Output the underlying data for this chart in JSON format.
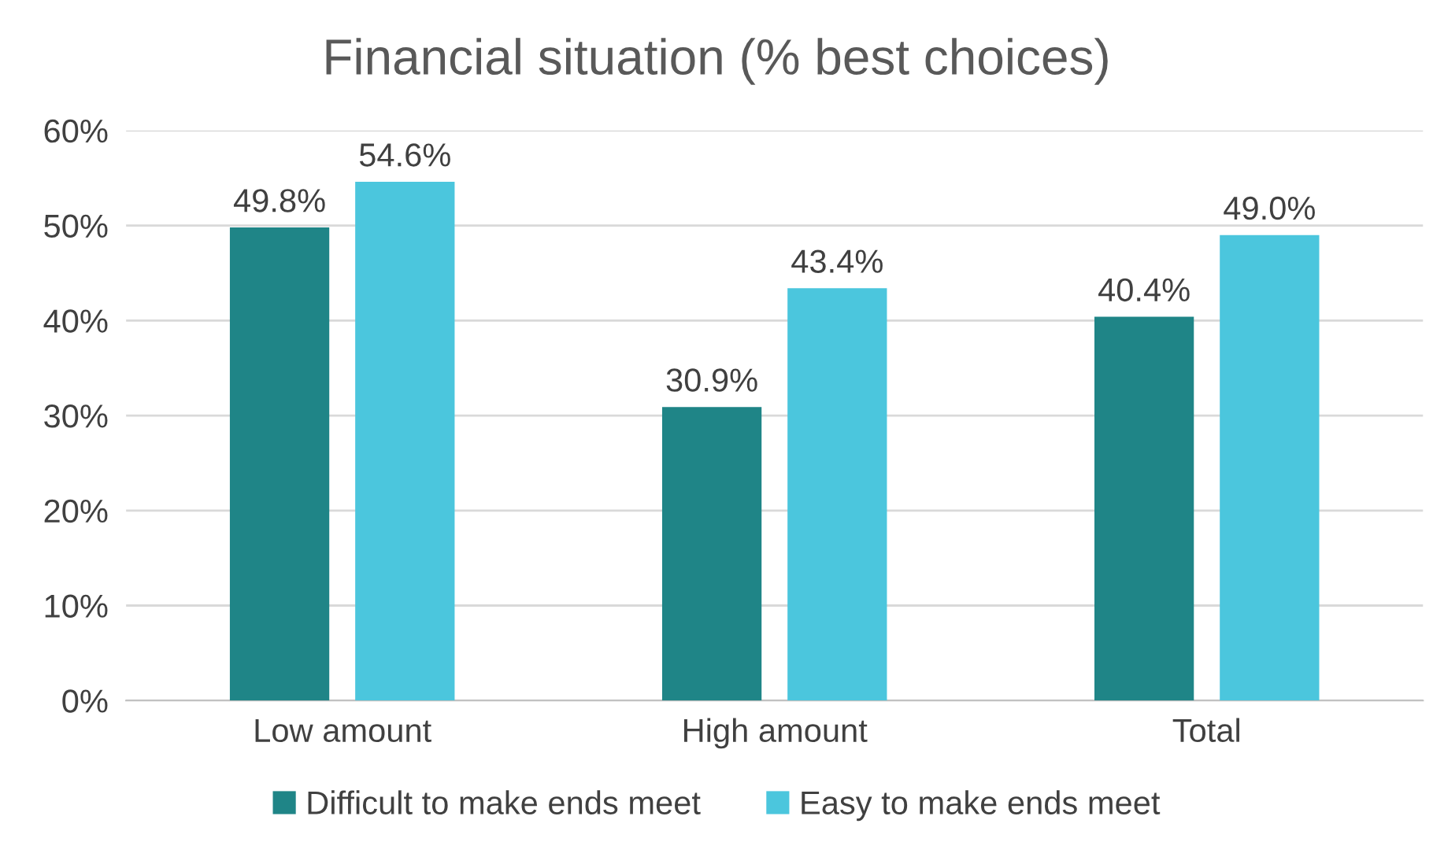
{
  "chart_data": {
    "type": "bar",
    "title": "Financial situation (% best choices)",
    "categories": [
      "Low amount",
      "High amount",
      "Total"
    ],
    "series": [
      {
        "name": "Difficult to make ends meet",
        "color": "#1f8587",
        "values": [
          49.8,
          30.9,
          40.4
        ],
        "value_labels": [
          "49.8%",
          "30.9%",
          "40.4%"
        ]
      },
      {
        "name": "Easy to make ends meet",
        "color": "#4bc6dd",
        "values": [
          54.6,
          43.4,
          49.0
        ],
        "value_labels": [
          "54.6%",
          "43.4%",
          "49.0%"
        ]
      }
    ],
    "ylim": [
      0,
      60
    ],
    "yticks": [
      {
        "value": 0,
        "label": "0%"
      },
      {
        "value": 10,
        "label": "10%"
      },
      {
        "value": 20,
        "label": "20%"
      },
      {
        "value": 30,
        "label": "30%"
      },
      {
        "value": 40,
        "label": "40%"
      },
      {
        "value": 50,
        "label": "50%"
      },
      {
        "value": 60,
        "label": "60%"
      }
    ],
    "grid": "y",
    "legend": "bottom"
  }
}
